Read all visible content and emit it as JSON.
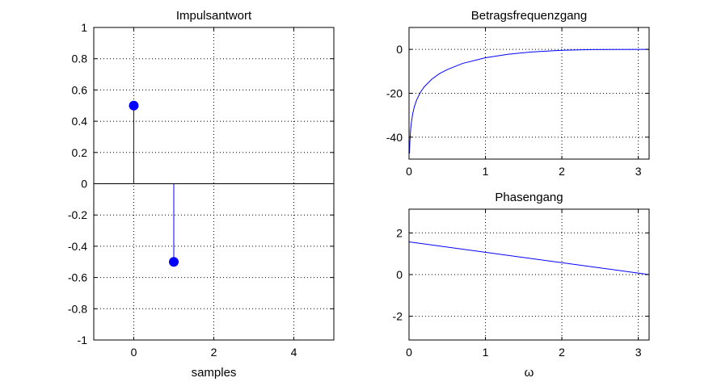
{
  "chart_data": [
    {
      "type": "stem",
      "title": "Impulsantwort",
      "xlabel": "samples",
      "ylabel": "",
      "xlim": [
        -1,
        5
      ],
      "ylim": [
        -1,
        1
      ],
      "xticks": [
        0,
        2,
        4
      ],
      "xtick_labels": [
        "0",
        "2",
        "4"
      ],
      "yticks": [
        -1,
        -0.8,
        -0.6,
        -0.4,
        -0.2,
        0,
        0.2,
        0.4,
        0.6,
        0.8,
        1
      ],
      "ytick_labels": [
        "-1",
        "-0.8",
        "-0.6",
        "-0.4",
        "-0.2",
        "0",
        "0.2",
        "0.4",
        "0.6",
        "0.8",
        "1"
      ],
      "grid": true,
      "color": "#0000ff",
      "series": [
        {
          "x": [
            0,
            1
          ],
          "values": [
            0.5,
            -0.5
          ]
        }
      ]
    },
    {
      "type": "line",
      "title": "Betragsfrequenzgang",
      "xlabel": "",
      "ylabel": "",
      "xlim": [
        0,
        3.14159
      ],
      "ylim": [
        -50,
        10
      ],
      "xticks": [
        0,
        1,
        2,
        3
      ],
      "xtick_labels": [
        "0",
        "1",
        "2",
        "3"
      ],
      "yticks": [
        -40,
        -20,
        0
      ],
      "ytick_labels": [
        "-40",
        "-20",
        "0"
      ],
      "grid": true,
      "color": "#0000ff",
      "series": [
        {
          "x": [
            0.006,
            0.01,
            0.02,
            0.03,
            0.05,
            0.07,
            0.1,
            0.15,
            0.2,
            0.3,
            0.4,
            0.5,
            0.7,
            1.0,
            1.3,
            1.6,
            2.0,
            2.4,
            2.8,
            3.14159
          ],
          "values": [
            -47.4,
            -43.0,
            -37.0,
            -33.5,
            -29.0,
            -26.1,
            -23.0,
            -19.5,
            -17.0,
            -13.5,
            -11.0,
            -9.2,
            -6.4,
            -3.8,
            -2.2,
            -1.2,
            -0.4,
            -0.09,
            -0.01,
            0.0
          ]
        }
      ]
    },
    {
      "type": "line",
      "title": "Phasengang",
      "xlabel": "ω",
      "ylabel": "",
      "xlim": [
        0,
        3.14159
      ],
      "ylim": [
        -3.14159,
        3.14159
      ],
      "xticks": [
        0,
        1,
        2,
        3
      ],
      "xtick_labels": [
        "0",
        "1",
        "2",
        "3"
      ],
      "yticks": [
        -2,
        0,
        2
      ],
      "ytick_labels": [
        "-2",
        "0",
        "2"
      ],
      "grid": true,
      "color": "#0000ff",
      "series": [
        {
          "x": [
            0,
            3.14159
          ],
          "values": [
            1.5708,
            0.0
          ]
        }
      ]
    }
  ]
}
